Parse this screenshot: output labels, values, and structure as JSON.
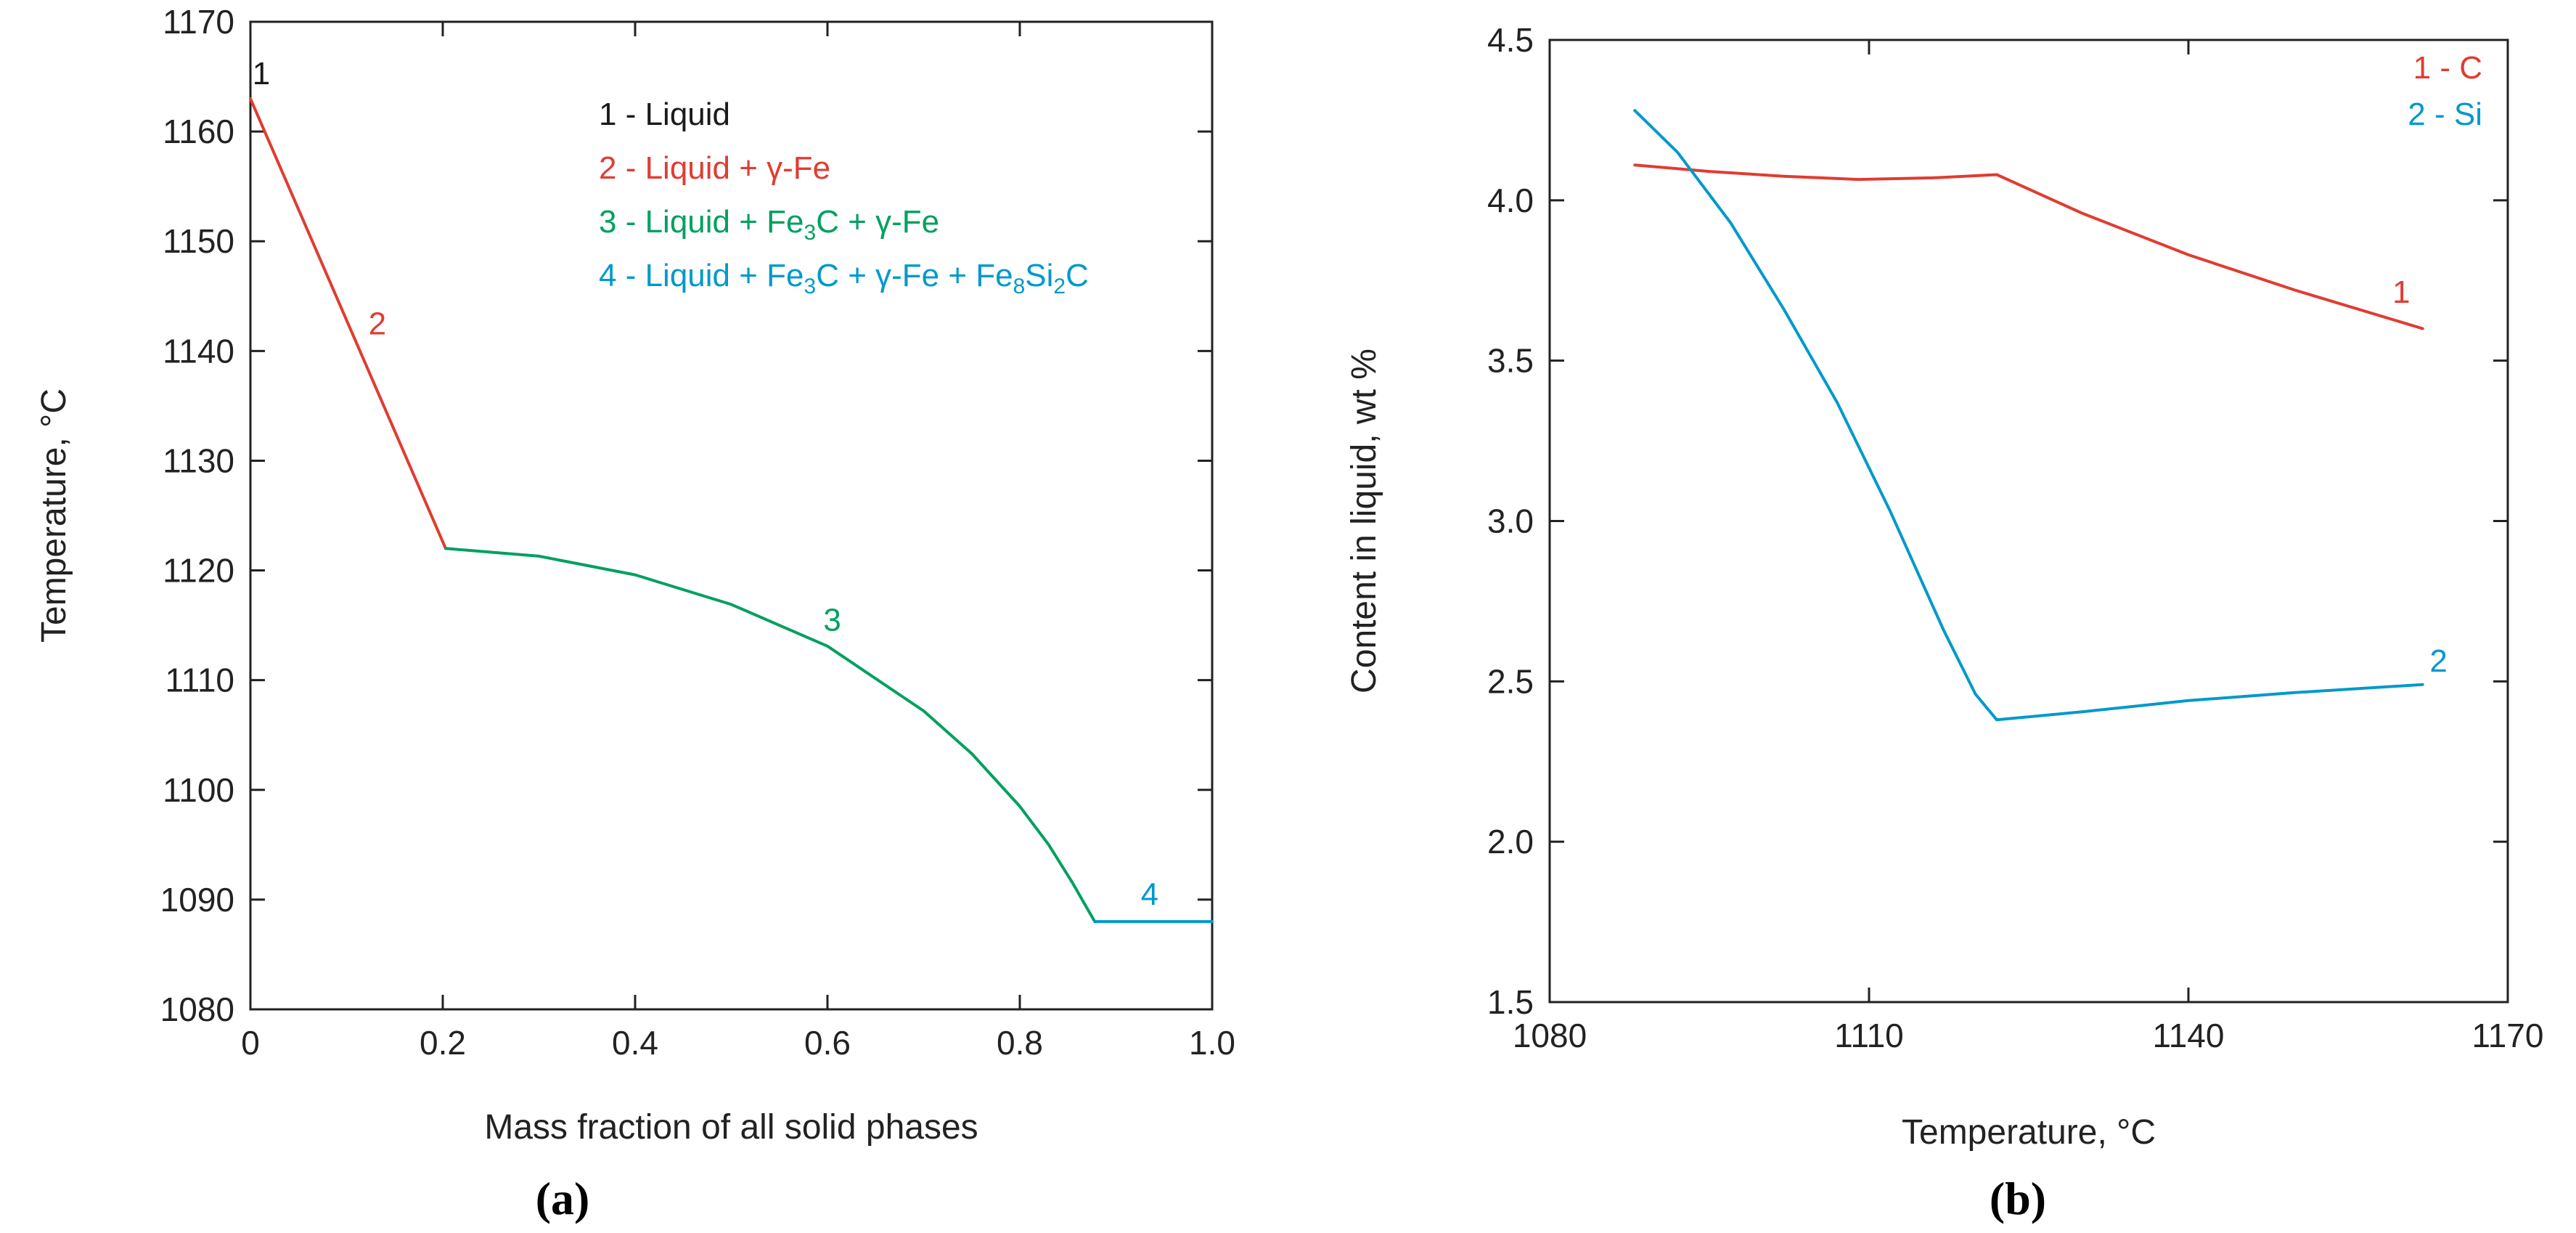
{
  "chart_data": [
    {
      "type": "line",
      "panel_label": "(a)",
      "title": "",
      "xlabel": "Mass fraction of all solid phases",
      "ylabel": "Temperature, °C",
      "xlim": [
        0,
        1.0
      ],
      "ylim": [
        1080,
        1170
      ],
      "xticks": [
        0,
        0.2,
        0.4,
        0.6,
        0.8,
        1.0
      ],
      "xtick_labels": [
        "0",
        "0.2",
        "0.4",
        "0.6",
        "0.8",
        "1.0"
      ],
      "yticks": [
        1080,
        1090,
        1100,
        1110,
        1120,
        1130,
        1140,
        1150,
        1160,
        1170
      ],
      "ytick_labels": [
        "1080",
        "1090",
        "1100",
        "1110",
        "1120",
        "1130",
        "1140",
        "1150",
        "1160",
        "1170"
      ],
      "grid": false,
      "legend_position": "top-center",
      "series": [
        {
          "name": "1 - Liquid",
          "legend_parts": [
            {
              "t": "1 - Liquid"
            }
          ],
          "color": "#1a1a1a",
          "label": "1",
          "x": [
            0
          ],
          "y": [
            1163
          ]
        },
        {
          "name": "2 - Liquid + γ-Fe",
          "legend_parts": [
            {
              "t": "2 - Liquid + γ-Fe"
            }
          ],
          "color": "#e03c31",
          "label": "2",
          "x": [
            0,
            0.203
          ],
          "y": [
            1163,
            1122
          ]
        },
        {
          "name": "3 - Liquid + Fe3C + γ-Fe",
          "legend_parts": [
            {
              "t": "3 - Liquid + Fe"
            },
            {
              "t": "3",
              "sub": true
            },
            {
              "t": "C + γ-Fe"
            }
          ],
          "color": "#00a060",
          "label": "3",
          "x": [
            0.203,
            0.3,
            0.4,
            0.5,
            0.6,
            0.7,
            0.75,
            0.8,
            0.83,
            0.855,
            0.87,
            0.878
          ],
          "y": [
            1122,
            1121.3,
            1119.6,
            1116.9,
            1113.1,
            1107.2,
            1103.3,
            1098.5,
            1095.0,
            1091.5,
            1089.2,
            1088
          ]
        },
        {
          "name": "4 - Liquid + Fe3C + γ-Fe + Fe8Si2C",
          "legend_parts": [
            {
              "t": "4 - Liquid + Fe"
            },
            {
              "t": "3",
              "sub": true
            },
            {
              "t": "C + γ-Fe + Fe"
            },
            {
              "t": "8",
              "sub": true
            },
            {
              "t": "Si"
            },
            {
              "t": "2",
              "sub": true
            },
            {
              "t": "C"
            }
          ],
          "color": "#0099cc",
          "label": "4",
          "x": [
            0.878,
            1.0
          ],
          "y": [
            1088,
            1088
          ]
        }
      ]
    },
    {
      "type": "line",
      "panel_label": "(b)",
      "title": "",
      "xlabel": "Temperature, °C",
      "ylabel": "Content in liquid, wt %",
      "xlim": [
        1080,
        1170
      ],
      "ylim": [
        1.5,
        4.5
      ],
      "xticks": [
        1080,
        1110,
        1140,
        1170
      ],
      "xtick_labels": [
        "1080",
        "1110",
        "1140",
        "1170"
      ],
      "yticks": [
        1.5,
        2.0,
        2.5,
        3.0,
        3.5,
        4.0,
        4.5
      ],
      "ytick_labels": [
        "1.5",
        "2.0",
        "2.5",
        "3.0",
        "3.5",
        "4.0",
        "4.5"
      ],
      "grid": false,
      "legend_position": "top-right",
      "series": [
        {
          "name": "1 - C",
          "legend_parts": [
            {
              "t": "1 - C"
            }
          ],
          "color": "#e03c31",
          "label": "1",
          "x": [
            1088,
            1095,
            1102,
            1109,
            1116,
            1122,
            1130,
            1140,
            1150,
            1162
          ],
          "y": [
            4.11,
            4.09,
            4.075,
            4.065,
            4.07,
            4.08,
            3.96,
            3.83,
            3.72,
            3.6
          ]
        },
        {
          "name": "2 - Si",
          "legend_parts": [
            {
              "t": "2 - Si"
            }
          ],
          "color": "#0099cc",
          "label": "2",
          "x": [
            1088,
            1092,
            1097,
            1102,
            1107,
            1112,
            1117,
            1120,
            1122,
            1130,
            1140,
            1150,
            1162
          ],
          "y": [
            4.28,
            4.15,
            3.93,
            3.66,
            3.37,
            3.03,
            2.66,
            2.46,
            2.38,
            2.405,
            2.44,
            2.465,
            2.49
          ]
        }
      ]
    }
  ]
}
